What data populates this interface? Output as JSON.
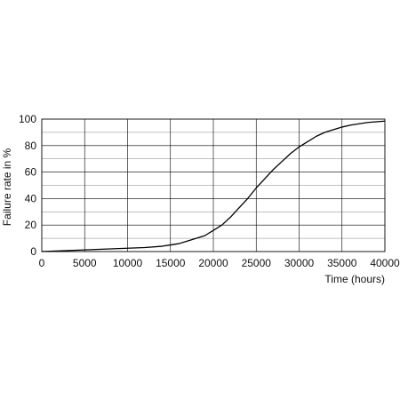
{
  "chart_data": {
    "type": "line",
    "title": "",
    "xlabel": "Time (hours)",
    "ylabel": "Failure rate in %",
    "xlim": [
      0,
      40000
    ],
    "ylim": [
      0,
      100
    ],
    "x_ticks": [
      0,
      5000,
      10000,
      15000,
      20000,
      25000,
      30000,
      35000,
      40000
    ],
    "x_tick_labels": [
      "0",
      "5000",
      "10000",
      "15000",
      "20000",
      "25000",
      "30000",
      "35000",
      "40000"
    ],
    "y_ticks": [
      0,
      20,
      40,
      60,
      80,
      100
    ],
    "y_tick_labels": [
      "0",
      "20",
      "40",
      "60",
      "80",
      "100"
    ],
    "grid": true,
    "legend": "none",
    "colors": {
      "line": "#000000",
      "grid": "#000000",
      "frame": "#000000"
    },
    "series": [
      {
        "x": [
          0,
          2000,
          4000,
          6000,
          8000,
          10000,
          12000,
          14000,
          15000,
          16000,
          17000,
          18000,
          19000,
          20000,
          21000,
          22000,
          23000,
          24000,
          25000,
          26000,
          27000,
          28000,
          29000,
          30000,
          31000,
          32000,
          33000,
          34000,
          35000,
          36000,
          37000,
          38000,
          39000,
          40000
        ],
        "y": [
          0,
          0.5,
          1,
          1.5,
          2,
          2.5,
          3,
          4,
          5,
          6,
          8,
          10,
          12,
          16,
          20,
          26,
          33,
          40,
          48,
          55,
          62,
          68,
          74,
          79,
          83,
          87,
          90,
          92,
          94,
          95.5,
          96.5,
          97.5,
          98,
          98.5
        ]
      }
    ]
  }
}
